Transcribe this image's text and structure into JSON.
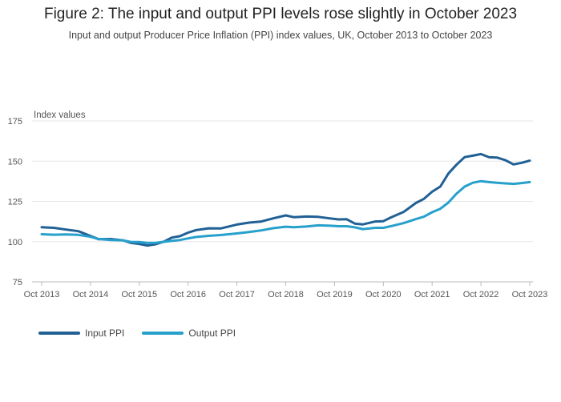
{
  "title": "Figure 2: The input and output PPI levels rose slightly in October 2023",
  "subtitle": "Input and output Producer Price Inflation (PPI) index values, UK, October 2013 to October 2023",
  "chart_data": {
    "type": "line",
    "ylabel": "Index values",
    "xlabel": "",
    "ylim": [
      75,
      175
    ],
    "yticks": [
      75,
      100,
      125,
      150,
      175
    ],
    "xticks": [
      "Oct 2013",
      "Oct 2014",
      "Oct 2015",
      "Oct 2016",
      "Oct 2017",
      "Oct 2018",
      "Oct 2019",
      "Oct 2020",
      "Oct 2021",
      "Oct 2022",
      "Oct 2023"
    ],
    "grid": true,
    "legend_position": "bottom-left",
    "series": [
      {
        "name": "Input PPI",
        "color": "#206095",
        "points": [
          [
            "2013-10",
            109.0
          ],
          [
            "2014-01",
            108.6
          ],
          [
            "2014-04",
            107.5
          ],
          [
            "2014-07",
            106.5
          ],
          [
            "2014-10",
            103.5
          ],
          [
            "2014-12",
            101.5
          ],
          [
            "2015-03",
            101.6
          ],
          [
            "2015-06",
            100.8
          ],
          [
            "2015-08",
            99.2
          ],
          [
            "2015-10",
            98.6
          ],
          [
            "2015-12",
            97.6
          ],
          [
            "2016-02",
            98.4
          ],
          [
            "2016-04",
            100.0
          ],
          [
            "2016-06",
            102.5
          ],
          [
            "2016-08",
            103.4
          ],
          [
            "2016-10",
            105.6
          ],
          [
            "2016-12",
            107.2
          ],
          [
            "2017-03",
            108.3
          ],
          [
            "2017-06",
            108.2
          ],
          [
            "2017-10",
            110.6
          ],
          [
            "2018-01",
            111.8
          ],
          [
            "2018-04",
            112.5
          ],
          [
            "2018-07",
            114.5
          ],
          [
            "2018-10",
            116.3
          ],
          [
            "2018-12",
            115.2
          ],
          [
            "2019-03",
            115.6
          ],
          [
            "2019-06",
            115.4
          ],
          [
            "2019-09",
            114.4
          ],
          [
            "2019-11",
            113.8
          ],
          [
            "2020-01",
            113.9
          ],
          [
            "2020-03",
            111.2
          ],
          [
            "2020-05",
            110.7
          ],
          [
            "2020-08",
            112.5
          ],
          [
            "2020-10",
            112.7
          ],
          [
            "2020-12",
            115.2
          ],
          [
            "2021-03",
            118.5
          ],
          [
            "2021-06",
            124.0
          ],
          [
            "2021-08",
            126.6
          ],
          [
            "2021-10",
            131.0
          ],
          [
            "2021-12",
            134.2
          ],
          [
            "2022-02",
            142.3
          ],
          [
            "2022-04",
            147.8
          ],
          [
            "2022-06",
            152.5
          ],
          [
            "2022-08",
            153.4
          ],
          [
            "2022-10",
            154.4
          ],
          [
            "2022-12",
            152.4
          ],
          [
            "2023-02",
            152.2
          ],
          [
            "2023-04",
            150.6
          ],
          [
            "2023-06",
            148.0
          ],
          [
            "2023-08",
            149.0
          ],
          [
            "2023-10",
            150.3
          ]
        ]
      },
      {
        "name": "Output PPI",
        "color": "#27a0cc",
        "points": [
          [
            "2013-10",
            104.6
          ],
          [
            "2014-01",
            104.3
          ],
          [
            "2014-04",
            104.5
          ],
          [
            "2014-07",
            104.2
          ],
          [
            "2014-10",
            103.0
          ],
          [
            "2014-12",
            101.6
          ],
          [
            "2015-03",
            101.0
          ],
          [
            "2015-06",
            100.8
          ],
          [
            "2015-08",
            99.8
          ],
          [
            "2015-10",
            99.8
          ],
          [
            "2015-12",
            99.2
          ],
          [
            "2016-02",
            99.3
          ],
          [
            "2016-04",
            99.9
          ],
          [
            "2016-06",
            100.5
          ],
          [
            "2016-08",
            101.0
          ],
          [
            "2016-10",
            102.0
          ],
          [
            "2016-12",
            102.9
          ],
          [
            "2017-03",
            103.6
          ],
          [
            "2017-06",
            104.1
          ],
          [
            "2017-10",
            105.1
          ],
          [
            "2018-01",
            106.0
          ],
          [
            "2018-04",
            107.0
          ],
          [
            "2018-07",
            108.4
          ],
          [
            "2018-10",
            109.3
          ],
          [
            "2018-12",
            109.0
          ],
          [
            "2019-03",
            109.4
          ],
          [
            "2019-06",
            110.1
          ],
          [
            "2019-09",
            109.9
          ],
          [
            "2019-11",
            109.6
          ],
          [
            "2020-01",
            109.6
          ],
          [
            "2020-03",
            108.9
          ],
          [
            "2020-05",
            107.8
          ],
          [
            "2020-08",
            108.6
          ],
          [
            "2020-10",
            108.6
          ],
          [
            "2020-12",
            109.7
          ],
          [
            "2021-03",
            111.5
          ],
          [
            "2021-06",
            114.0
          ],
          [
            "2021-08",
            115.5
          ],
          [
            "2021-10",
            118.3
          ],
          [
            "2021-12",
            120.4
          ],
          [
            "2022-02",
            124.3
          ],
          [
            "2022-04",
            129.8
          ],
          [
            "2022-06",
            134.2
          ],
          [
            "2022-08",
            136.6
          ],
          [
            "2022-10",
            137.6
          ],
          [
            "2022-12",
            137.0
          ],
          [
            "2023-02",
            136.6
          ],
          [
            "2023-04",
            136.2
          ],
          [
            "2023-06",
            135.9
          ],
          [
            "2023-08",
            136.4
          ],
          [
            "2023-10",
            137.0
          ]
        ]
      }
    ]
  }
}
